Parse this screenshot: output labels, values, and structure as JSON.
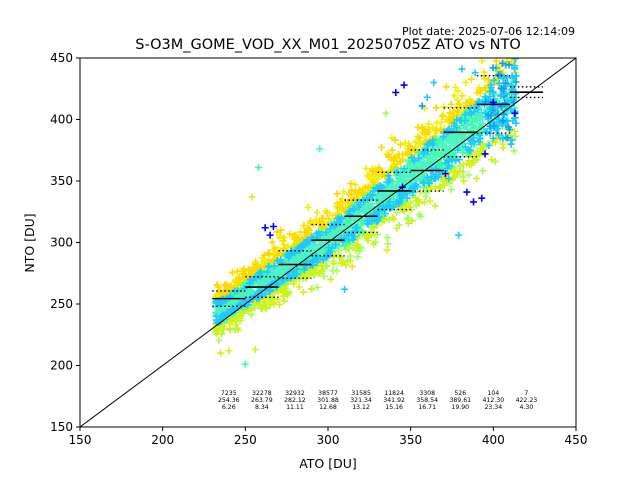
{
  "plot_date": "Plot date: 2025-07-06 12:14:09",
  "chart_data": {
    "type": "scatter",
    "title": "S-O3M_GOME_VOD_XX_M01_20250705Z ATO vs NTO",
    "xlabel": "ATO [DU]",
    "ylabel": "NTO [DU]",
    "xlim": [
      150,
      450
    ],
    "ylim": [
      150,
      450
    ],
    "xticks": [
      "150",
      "200",
      "250",
      "300",
      "350",
      "400",
      "450"
    ],
    "yticks": [
      "150",
      "200",
      "250",
      "300",
      "350",
      "400",
      "450"
    ],
    "grid": false,
    "legend": "none",
    "identity_line": [
      [
        150,
        150
      ],
      [
        450,
        450
      ]
    ],
    "marker": "+",
    "density_colors": [
      "#9cff5a",
      "#d4f01a",
      "#f0f000",
      "#ffd700",
      "#3cffa0",
      "#50f0c8",
      "#20c8ff",
      "#0aa0f0",
      "#0000ff"
    ],
    "scatter_cloud": {
      "ridge": [
        [
          235,
          245
        ],
        [
          250,
          258
        ],
        [
          265,
          272
        ],
        [
          280,
          285
        ],
        [
          295,
          298
        ],
        [
          310,
          312
        ],
        [
          325,
          328
        ],
        [
          340,
          345
        ],
        [
          355,
          360
        ],
        [
          370,
          375
        ],
        [
          385,
          392
        ],
        [
          400,
          408
        ],
        [
          410,
          418
        ]
      ],
      "outliers": [
        [
          258,
          361
        ],
        [
          295,
          376
        ],
        [
          240,
          212
        ],
        [
          256,
          213
        ],
        [
          235,
          210
        ],
        [
          254,
          337
        ],
        [
          379,
          306
        ],
        [
          393,
          336
        ],
        [
          371,
          356
        ],
        [
          341,
          422
        ],
        [
          346,
          428
        ],
        [
          381,
          441
        ],
        [
          389,
          438
        ],
        [
          400,
          414
        ],
        [
          413,
          405
        ],
        [
          405,
          420
        ],
        [
          395,
          372
        ],
        [
          384,
          341
        ],
        [
          388,
          333
        ],
        [
          373,
          352
        ],
        [
          265,
          306
        ],
        [
          262,
          312
        ],
        [
          267,
          313
        ],
        [
          345,
          345
        ],
        [
          335,
          405
        ],
        [
          360,
          418
        ],
        [
          364,
          430
        ],
        [
          357,
          411
        ],
        [
          310,
          262
        ],
        [
          290,
          262
        ],
        [
          250,
          201
        ]
      ]
    },
    "bins": [
      {
        "count": "7235",
        "mean": "254.36",
        "std": "6.26",
        "x": 240,
        "y": 254.36,
        "sd": 6.26
      },
      {
        "count": "32278",
        "mean": "263.79",
        "std": "8.34",
        "x": 260,
        "y": 263.79,
        "sd": 8.34
      },
      {
        "count": "32932",
        "mean": "282.12",
        "std": "11.11",
        "x": 280,
        "y": 282.12,
        "sd": 11.11
      },
      {
        "count": "38577",
        "mean": "301.88",
        "std": "12.68",
        "x": 300,
        "y": 301.88,
        "sd": 12.68
      },
      {
        "count": "31585",
        "mean": "321.34",
        "std": "13.12",
        "x": 320,
        "y": 321.34,
        "sd": 13.12
      },
      {
        "count": "11824",
        "mean": "341.92",
        "std": "15.16",
        "x": 340,
        "y": 341.92,
        "sd": 15.16
      },
      {
        "count": "3308",
        "mean": "358.54",
        "std": "16.71",
        "x": 360,
        "y": 358.54,
        "sd": 16.71
      },
      {
        "count": "526",
        "mean": "389.61",
        "std": "19.90",
        "x": 380,
        "y": 389.61,
        "sd": 19.9
      },
      {
        "count": "104",
        "mean": "412.30",
        "std": "23.34",
        "x": 400,
        "y": 412.3,
        "sd": 23.34
      },
      {
        "count": "7",
        "mean": "422.23",
        "std": "4.30",
        "x": 420,
        "y": 422.23,
        "sd": 4.3
      }
    ]
  }
}
